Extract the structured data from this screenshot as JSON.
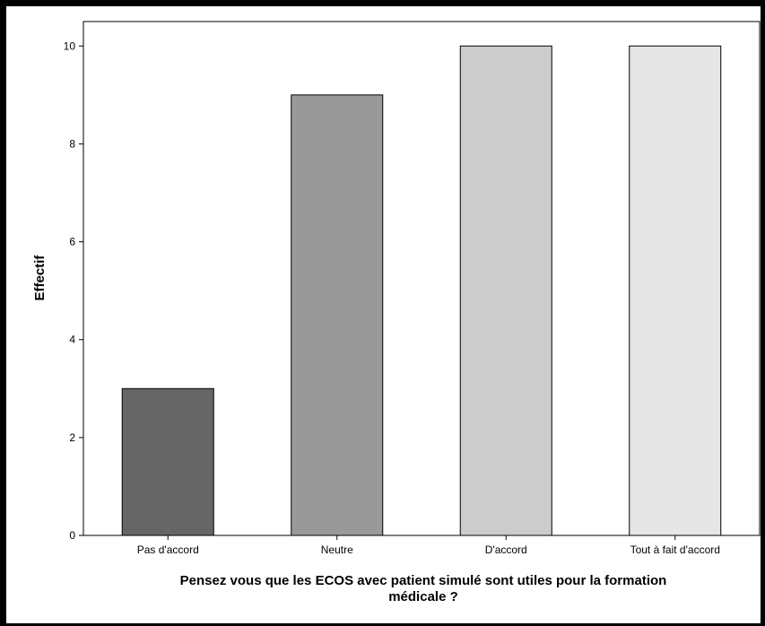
{
  "chart_data": {
    "type": "bar",
    "title": "",
    "xlabel_lines": [
      "Pensez vous que les ECOS avec patient simulé sont utiles pour la formation",
      "médicale ?"
    ],
    "ylabel": "Effectif",
    "categories": [
      "Pas d'accord",
      "Neutre",
      "D'accord",
      "Tout à fait d'accord"
    ],
    "values": [
      3,
      9,
      10,
      10
    ],
    "bar_colors": [
      "#666666",
      "#999999",
      "#cccccc",
      "#e6e6e6"
    ],
    "ylim": [
      0,
      10.5
    ],
    "yticks": [
      0,
      2,
      4,
      6,
      8,
      10
    ],
    "grid": false,
    "legend": "none"
  }
}
